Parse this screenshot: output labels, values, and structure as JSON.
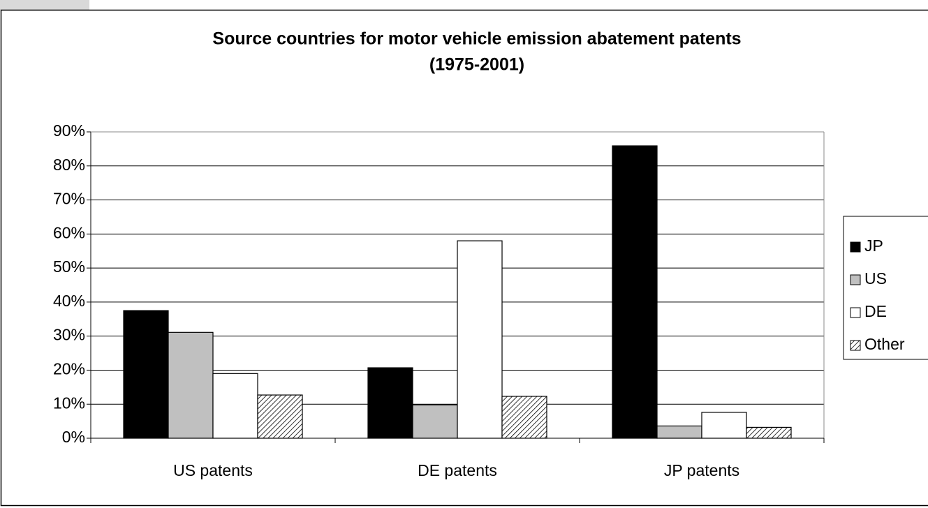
{
  "chart_data": {
    "type": "bar",
    "title": "Source countries for motor vehicle emission abatement patents",
    "subtitle": "(1975-2001)",
    "categories": [
      "US patents",
      "DE patents",
      "JP patents"
    ],
    "series": [
      {
        "name": "JP",
        "color": "#000000",
        "values": [
          37.5,
          20.7,
          85.9
        ]
      },
      {
        "name": "US",
        "color": "#c0c0c0",
        "values": [
          31.1,
          9.8,
          3.6
        ]
      },
      {
        "name": "DE",
        "color": "#ffffff",
        "values": [
          19,
          58,
          7.6
        ]
      },
      {
        "name": "Other",
        "color": "#ffffff",
        "pattern": "hatch",
        "values": [
          12.7,
          12.3,
          3.2
        ]
      }
    ],
    "ylim": [
      0,
      90
    ],
    "yticks": [
      {
        "value": 0,
        "label": "0%"
      },
      {
        "value": 10,
        "label": "10%"
      },
      {
        "value": 20,
        "label": "20%"
      },
      {
        "value": 30,
        "label": "30%"
      },
      {
        "value": 40,
        "label": "40%"
      },
      {
        "value": 50,
        "label": "50%"
      },
      {
        "value": 60,
        "label": "60%"
      },
      {
        "value": 70,
        "label": "70%"
      },
      {
        "value": 80,
        "label": "80%"
      },
      {
        "value": 90,
        "label": "90%"
      }
    ],
    "grid": true,
    "legend": "right"
  }
}
